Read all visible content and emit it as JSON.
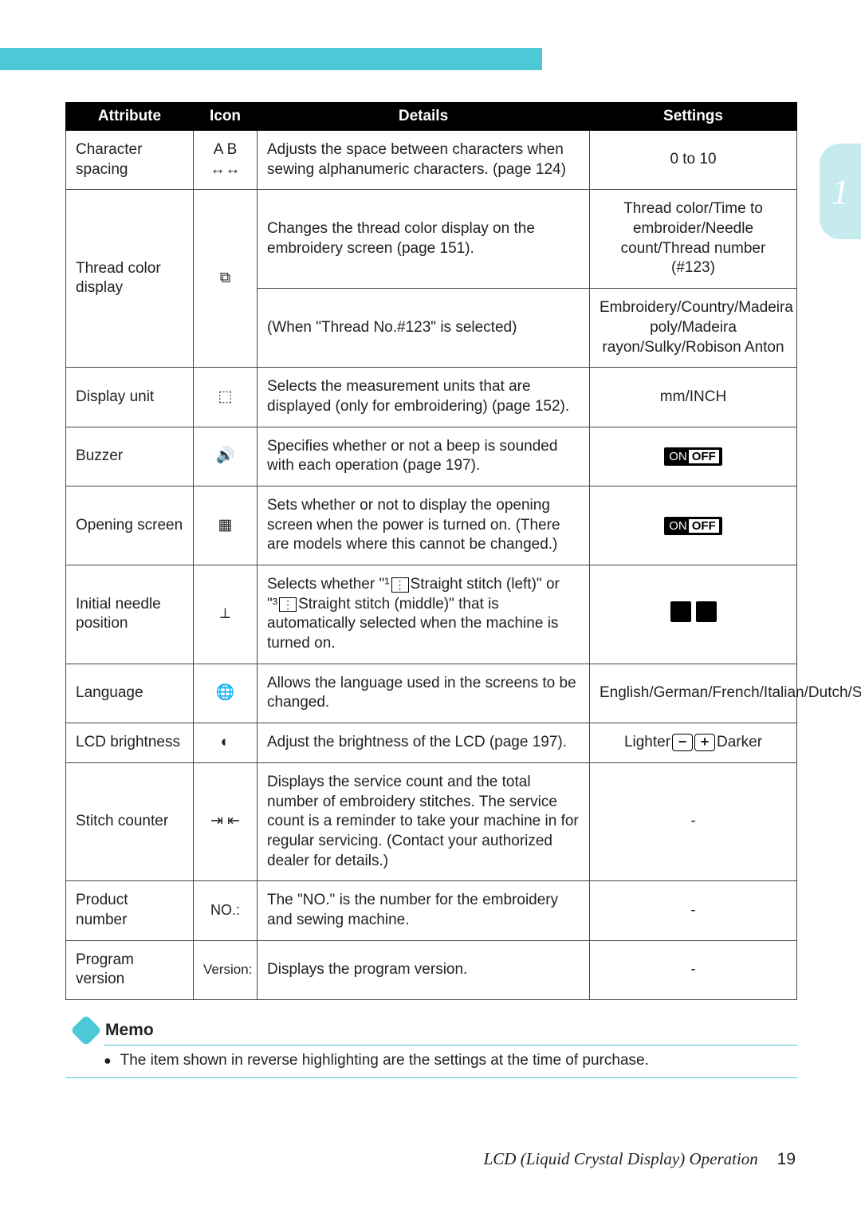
{
  "header": {
    "band_color": "#4ec7d6",
    "side_tab_number": "1",
    "side_tab_bg": "#c5ebef",
    "side_tab_fg": "#ffffff"
  },
  "table": {
    "columns": [
      "Attribute",
      "Icon",
      "Details",
      "Settings"
    ],
    "rows": [
      {
        "attribute": "Character spacing",
        "icon": "A B\n↔↔",
        "details": "Adjusts the space between characters when sewing alphanumeric characters. (page 124)",
        "settings_type": "text",
        "settings": "0 to 10"
      },
      {
        "attribute": "Thread color display",
        "icon": "⧉",
        "rowspan_attr": 2,
        "details": "Changes the thread color display on the embroidery screen (page 151).",
        "settings_type": "text",
        "settings": "Thread color/Time to embroider/Needle count/Thread number (#123)"
      },
      {
        "details": "(When \"Thread No.#123\" is selected)",
        "settings_type": "text",
        "settings": "Embroidery/Country/Madeira poly/Madeira rayon/Sulky/Robison Anton"
      },
      {
        "attribute": "Display unit",
        "icon": "⬚",
        "details": "Selects the measurement units that are displayed (only for embroidering) (page 152).",
        "settings_type": "text",
        "settings": "mm/INCH"
      },
      {
        "attribute": "Buzzer",
        "icon": "🔊",
        "details": "Specifies whether or not a beep is sounded with each operation (page 197).",
        "settings_type": "onoff",
        "settings": "ON OFF"
      },
      {
        "attribute": "Opening screen",
        "icon": "▦",
        "details": "Sets whether or not to display the opening screen when the power is turned on.\n(There are models where this cannot be changed.)",
        "settings_type": "onoff",
        "settings": "ON OFF"
      },
      {
        "attribute": "Initial needle position",
        "icon": "⟂",
        "details_type": "needle",
        "details_pre": "Selects whether \"¹",
        "details_mid1": "Straight stitch (left)\" or",
        "details_mid2": "\"³",
        "details_mid3": "Straight stitch (middle)\" that is automatically selected when the machine is turned on.",
        "settings_type": "needle_icons",
        "settings": ""
      },
      {
        "attribute": "Language",
        "icon": "🌐",
        "details": "Allows the language used in the screens to be changed.",
        "settings_type": "text",
        "settings": "English/German/French/Italian/Dutch/Spanish/Japanese/Danish/Norwegian/Finnish/Swedish/Portuguese/Russian/Korean/Thai/others"
      },
      {
        "attribute": "LCD brightness",
        "icon": "◐",
        "details": "Adjust the brightness of the LCD (page 197).",
        "settings_type": "brightness",
        "settings_lighter": "Lighter",
        "settings_darker": "Darker"
      },
      {
        "attribute": "Stitch counter",
        "icon": "⇥\n⇤",
        "details": "Displays the service count and the total number of embroidery stitches. The service count is a reminder to take your machine in for regular servicing. (Contact your authorized dealer for details.)",
        "settings_type": "text",
        "settings": "-"
      },
      {
        "attribute": "Product number",
        "icon": "NO.:",
        "details": "The \"NO.\" is the number for the embroidery and sewing machine.",
        "settings_type": "text",
        "settings": "-"
      },
      {
        "attribute": "Program version",
        "icon": "Version:",
        "details": "Displays the program version.",
        "settings_type": "text",
        "settings": "-"
      }
    ]
  },
  "memo": {
    "title": "Memo",
    "text": "The item shown in reverse highlighting are the settings at the time of purchase.",
    "rule_color": "#4ec7d6"
  },
  "footer": {
    "title": "LCD (Liquid Crystal Display) Operation",
    "page": "19"
  }
}
